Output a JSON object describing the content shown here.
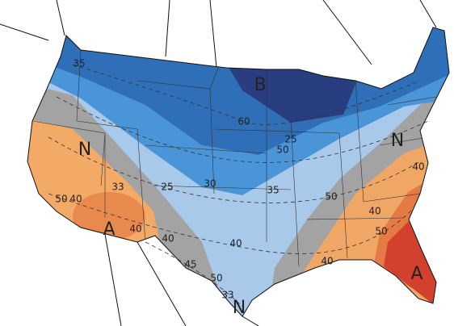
{
  "map": {
    "category_labels": [
      "B",
      "N",
      "N",
      "N",
      "A",
      "A"
    ],
    "contour_labels": [
      "35",
      "60",
      "50",
      "25",
      "40",
      "33",
      "25",
      "30",
      "35",
      "50",
      "40",
      "40",
      "45",
      "50",
      "33",
      "40",
      "50",
      "40",
      "50",
      "40",
      "40"
    ]
  }
}
